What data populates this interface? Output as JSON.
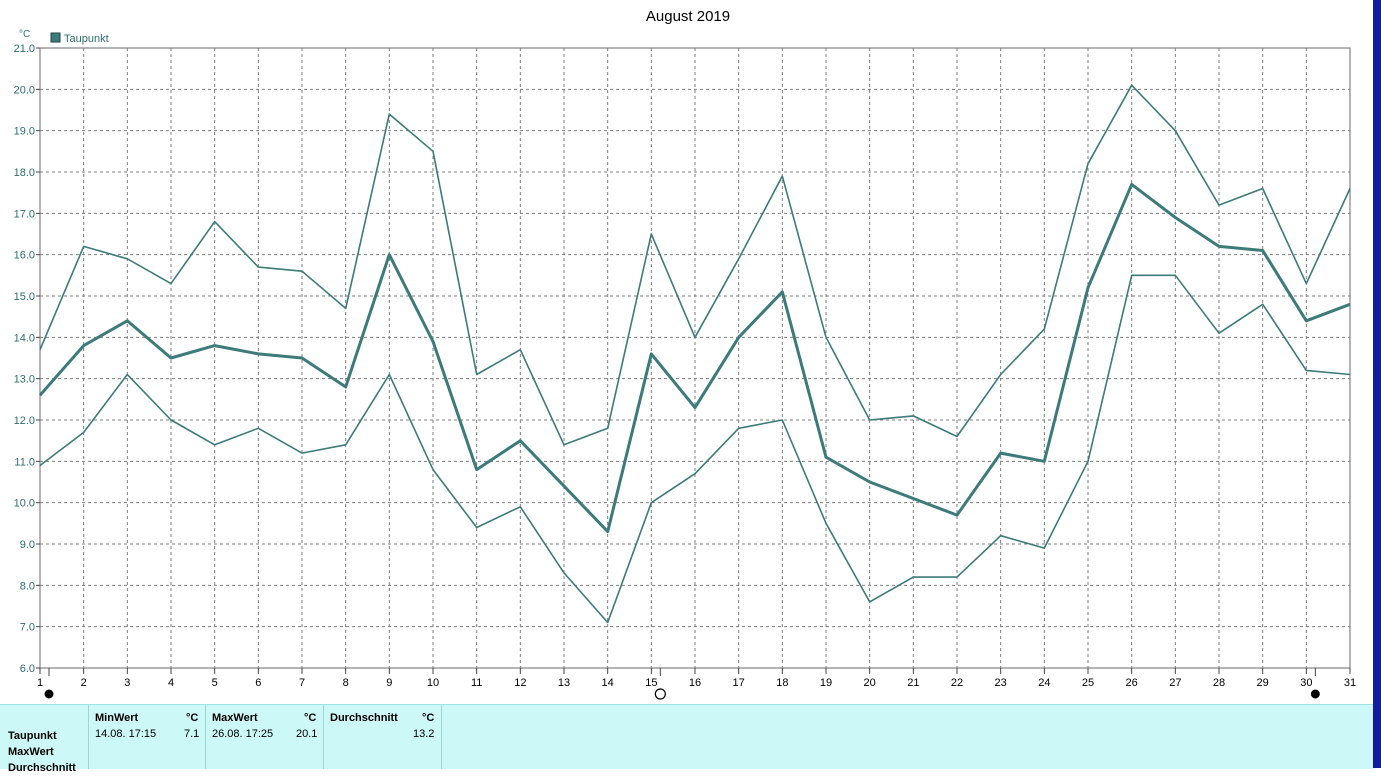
{
  "chart_data": {
    "type": "line",
    "title": "August 2019",
    "unit": "°C",
    "legend": [
      "Taupunkt"
    ],
    "legend_position": "top-left",
    "ylim": [
      6.0,
      21.0
    ],
    "yticks": [
      "6.0",
      "7.0",
      "8.0",
      "9.0",
      "10.0",
      "11.0",
      "12.0",
      "13.0",
      "14.0",
      "15.0",
      "16.0",
      "17.0",
      "18.0",
      "19.0",
      "20.0",
      "21.0"
    ],
    "x": [
      1,
      2,
      3,
      4,
      5,
      6,
      7,
      8,
      9,
      10,
      11,
      12,
      13,
      14,
      15,
      16,
      17,
      18,
      19,
      20,
      21,
      22,
      23,
      24,
      25,
      26,
      27,
      28,
      29,
      30,
      31
    ],
    "grid": true,
    "series": [
      {
        "key": "max",
        "values": [
          13.7,
          16.2,
          15.9,
          15.3,
          16.8,
          15.7,
          15.6,
          14.7,
          19.4,
          18.5,
          13.1,
          13.7,
          11.4,
          11.8,
          16.5,
          14.0,
          15.9,
          17.9,
          14.0,
          12.0,
          12.1,
          11.6,
          13.1,
          14.2,
          18.2,
          20.1,
          19.0,
          17.2,
          17.6,
          15.3,
          17.6
        ]
      },
      {
        "key": "avg",
        "values": [
          12.6,
          13.8,
          14.4,
          13.5,
          13.8,
          13.6,
          13.5,
          12.8,
          16.0,
          13.9,
          10.8,
          11.5,
          10.4,
          9.3,
          13.6,
          12.3,
          14.0,
          15.1,
          11.1,
          10.5,
          10.1,
          9.7,
          11.2,
          11.0,
          15.2,
          17.7,
          16.9,
          16.2,
          16.1,
          14.4,
          14.8
        ]
      },
      {
        "key": "min",
        "values": [
          10.9,
          11.7,
          13.1,
          12.0,
          11.4,
          11.8,
          11.2,
          11.4,
          13.1,
          10.8,
          9.4,
          9.9,
          8.3,
          7.1,
          10.0,
          10.7,
          11.8,
          12.0,
          9.5,
          7.6,
          8.2,
          8.2,
          9.2,
          8.9,
          11.0,
          15.5,
          15.5,
          14.1,
          14.8,
          13.2,
          13.1
        ]
      }
    ],
    "line_color": "#3d7a7a",
    "moon_phases": [
      {
        "day": 1,
        "phase": "new"
      },
      {
        "day": 15,
        "phase": "full"
      },
      {
        "day": 30,
        "phase": "new"
      }
    ]
  },
  "stats": {
    "row_labels": [
      "Taupunkt",
      "MaxWert",
      "Durchschnitt"
    ],
    "min": {
      "header": "MinWert",
      "unit": "°C",
      "datetime": "14.08.  17:15",
      "value": "7.1"
    },
    "max": {
      "header": "MaxWert",
      "unit": "°C",
      "datetime": "26.08.  17:25",
      "value": "20.1"
    },
    "avg": {
      "header": "Durchschnitt",
      "unit": "°C",
      "value": "13.2"
    }
  },
  "colors": {
    "panel_bg": "#ccf9f7",
    "strip": "#0d1f9c",
    "grid": "#7d7d7d"
  }
}
